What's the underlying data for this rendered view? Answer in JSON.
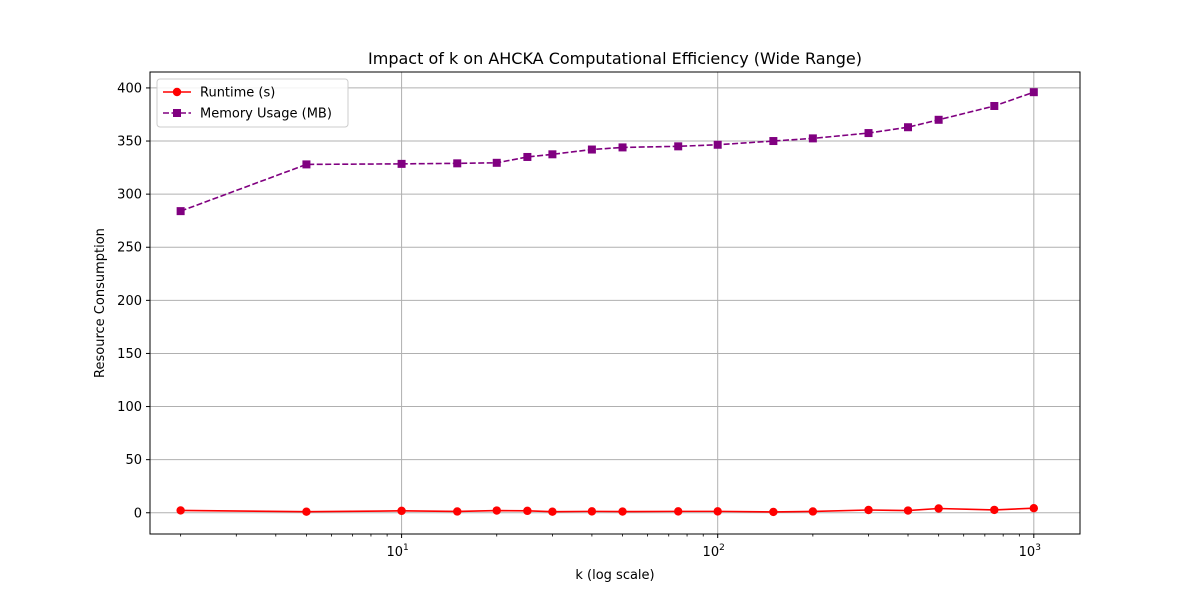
{
  "chart_data": {
    "type": "line",
    "title": "Impact of k on AHCKA Computational Efficiency (Wide Range)",
    "xlabel": "k (log scale)",
    "ylabel": "Resource Consumption",
    "x_scale": "log",
    "xlim": [
      1.6,
      1400
    ],
    "ylim": [
      -20,
      415
    ],
    "x_ticks": [
      10,
      100,
      1000
    ],
    "x_tick_labels": [
      {
        "base": "10",
        "exp": "1"
      },
      {
        "base": "10",
        "exp": "2"
      },
      {
        "base": "10",
        "exp": "3"
      }
    ],
    "y_ticks": [
      0,
      50,
      100,
      150,
      200,
      250,
      300,
      350,
      400
    ],
    "grid": true,
    "legend_position": "top-left",
    "x": [
      2,
      5,
      10,
      15,
      20,
      25,
      30,
      40,
      50,
      75,
      100,
      150,
      200,
      300,
      400,
      500,
      750,
      1000
    ],
    "series": [
      {
        "name": "Runtime (s)",
        "color": "#ff0000",
        "line_style": "solid",
        "marker": "circle",
        "values": [
          2.2,
          1.0,
          1.8,
          1.2,
          2.1,
          1.8,
          1.0,
          1.3,
          1.1,
          1.3,
          1.3,
          0.8,
          1.2,
          2.6,
          2.1,
          4.0,
          2.7,
          4.3
        ]
      },
      {
        "name": "Memory Usage (MB)",
        "color": "#800080",
        "line_style": "dashed",
        "marker": "square",
        "values": [
          284,
          328,
          328.5,
          329,
          329.5,
          335,
          337.5,
          342,
          344,
          345,
          346.5,
          350,
          352.5,
          357.5,
          363,
          370,
          383,
          396
        ]
      }
    ]
  }
}
